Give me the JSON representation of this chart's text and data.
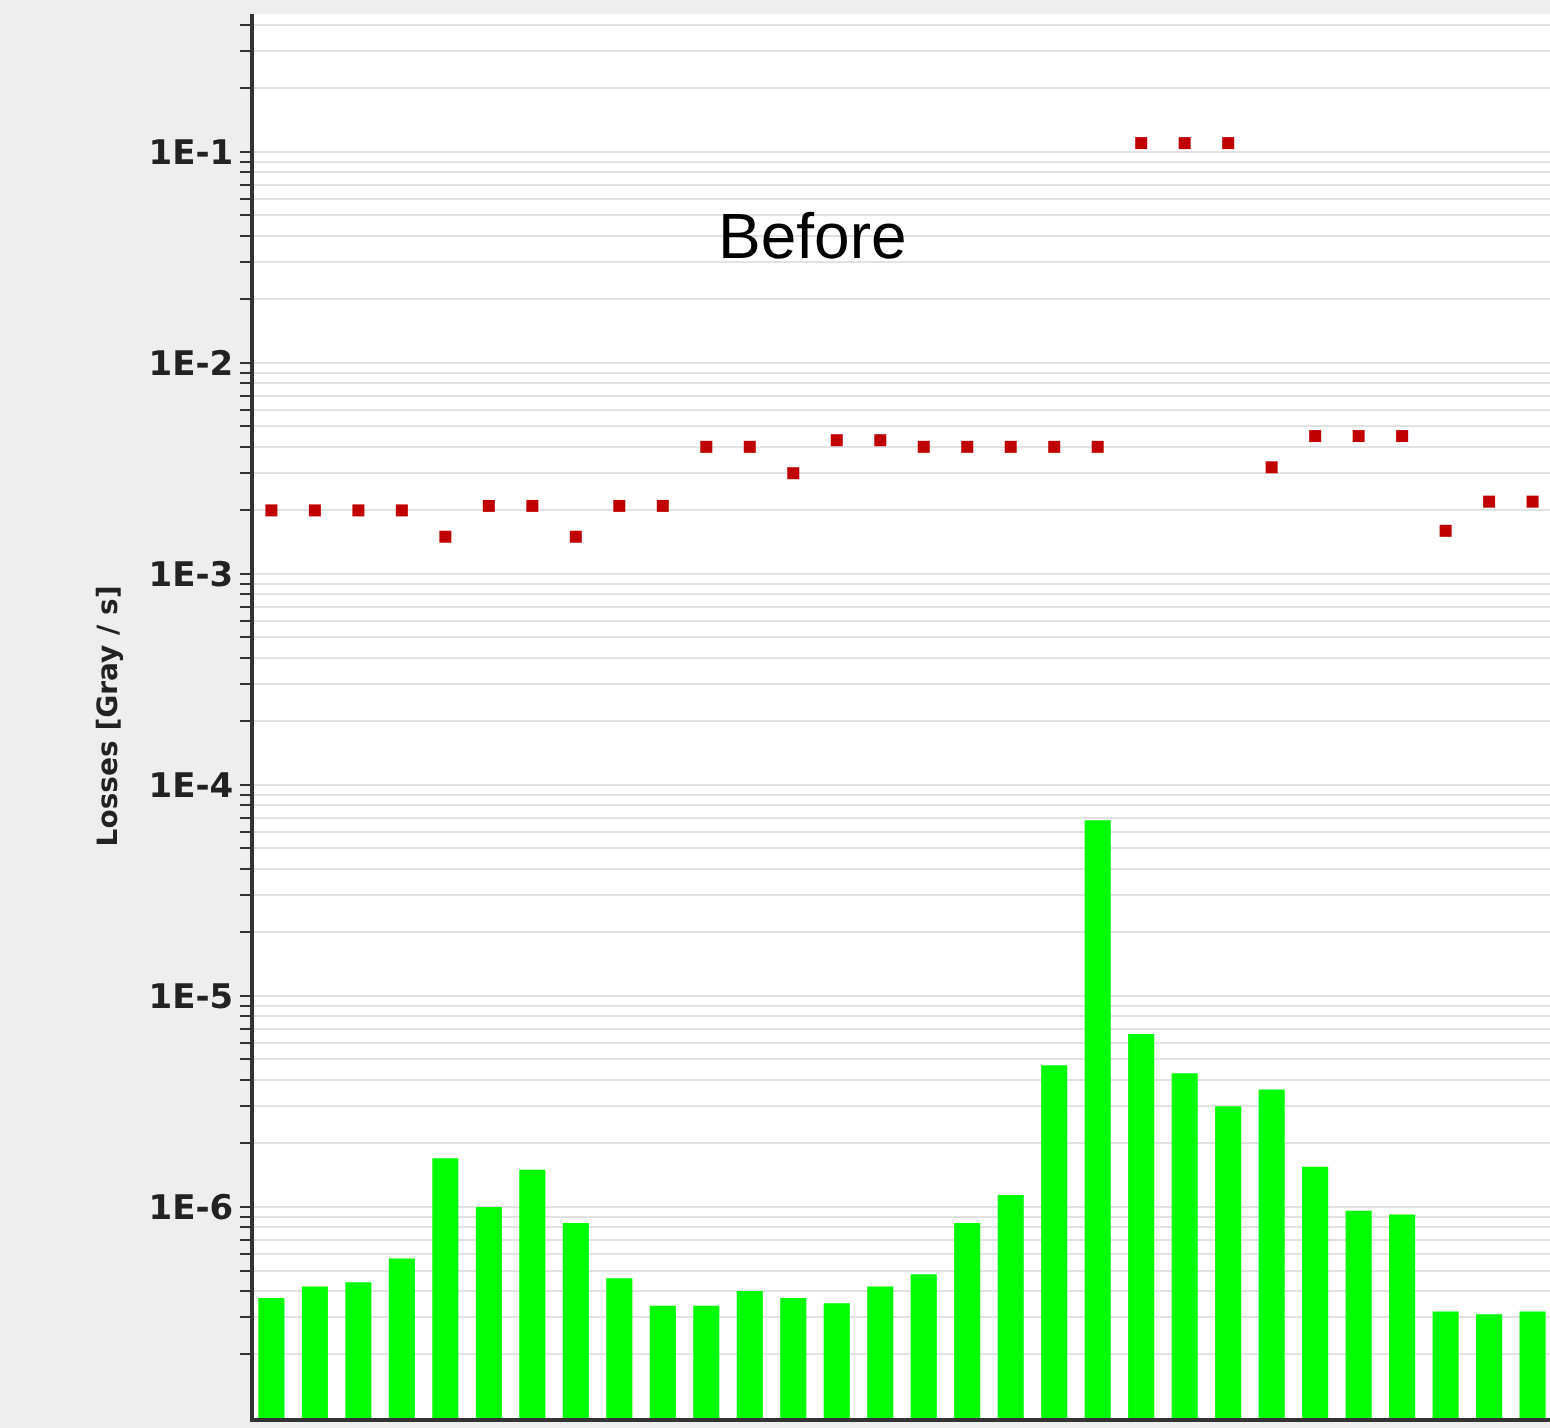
{
  "chart_data": {
    "type": "bar",
    "ylabel": "Losses [Gray / s]",
    "annotations": [
      "Before"
    ],
    "categories": [
      null,
      null,
      null,
      null,
      null,
      null,
      null,
      null,
      null,
      null,
      null,
      null,
      null,
      null,
      null,
      null,
      null,
      null,
      null,
      null,
      null,
      null,
      null,
      null,
      null,
      null,
      null,
      null,
      null,
      null
    ],
    "series": [
      {
        "color": "#00ff00",
        "values": [
          3.7e-07,
          4.2e-07,
          4.4e-07,
          5.7e-07,
          1.7e-06,
          1e-06,
          1.5e-06,
          8.4e-07,
          4.6e-07,
          3.4e-07,
          3.4e-07,
          4e-07,
          3.7e-07,
          3.5e-07,
          4.2e-07,
          4.8e-07,
          8.4e-07,
          1.14e-06,
          4.7e-06,
          6.8e-05,
          6.6e-06,
          4.3e-06,
          3e-06,
          3.6e-06,
          1.55e-06,
          9.6e-07,
          9.2e-07,
          3.2e-07,
          3.1e-07,
          3.2e-07
        ]
      },
      {
        "type": "scatter",
        "color": "#c00000",
        "marker": "square",
        "values": [
          0.002,
          0.002,
          0.002,
          0.002,
          0.0015,
          0.0021,
          0.0021,
          0.0015,
          0.0021,
          0.0021,
          0.004,
          0.004,
          0.003,
          0.0043,
          0.0043,
          0.004,
          0.004,
          0.004,
          0.004,
          0.004,
          0.11,
          0.11,
          0.11,
          0.0032,
          0.0045,
          0.0045,
          0.0045,
          0.0016,
          0.0022,
          0.0022
        ]
      }
    ],
    "log": true,
    "ylim": [
      1e-07,
      0.45
    ],
    "yticks": [
      {
        "value": 2e-07,
        "label": null
      },
      {
        "value": 3e-07,
        "label": null
      },
      {
        "value": 4e-07,
        "label": null
      },
      {
        "value": 5e-07,
        "label": null
      },
      {
        "value": 6e-07,
        "label": null
      },
      {
        "value": 7e-07,
        "label": null
      },
      {
        "value": 8e-07,
        "label": null
      },
      {
        "value": 9e-07,
        "label": null
      },
      {
        "value": 1e-06,
        "label": "1E-6"
      },
      {
        "value": 2e-06,
        "label": null
      },
      {
        "value": 3e-06,
        "label": null
      },
      {
        "value": 4e-06,
        "label": null
      },
      {
        "value": 5e-06,
        "label": null
      },
      {
        "value": 6e-06,
        "label": null
      },
      {
        "value": 7e-06,
        "label": null
      },
      {
        "value": 8e-06,
        "label": null
      },
      {
        "value": 9e-06,
        "label": null
      },
      {
        "value": 1e-05,
        "label": "1E-5"
      },
      {
        "value": 2e-05,
        "label": null
      },
      {
        "value": 3e-05,
        "label": null
      },
      {
        "value": 4e-05,
        "label": null
      },
      {
        "value": 5e-05,
        "label": null
      },
      {
        "value": 6e-05,
        "label": null
      },
      {
        "value": 7e-05,
        "label": null
      },
      {
        "value": 8e-05,
        "label": null
      },
      {
        "value": 9e-05,
        "label": null
      },
      {
        "value": 0.0001,
        "label": "1E-4"
      },
      {
        "value": 0.0002,
        "label": null
      },
      {
        "value": 0.0003,
        "label": null
      },
      {
        "value": 0.0004,
        "label": null
      },
      {
        "value": 0.0005,
        "label": null
      },
      {
        "value": 0.0006,
        "label": null
      },
      {
        "value": 0.0007,
        "label": null
      },
      {
        "value": 0.0008,
        "label": null
      },
      {
        "value": 0.0009,
        "label": null
      },
      {
        "value": 0.001,
        "label": "1E-3"
      },
      {
        "value": 0.002,
        "label": null
      },
      {
        "value": 0.003,
        "label": null
      },
      {
        "value": 0.004,
        "label": null
      },
      {
        "value": 0.005,
        "label": null
      },
      {
        "value": 0.006,
        "label": null
      },
      {
        "value": 0.007,
        "label": null
      },
      {
        "value": 0.008,
        "label": null
      },
      {
        "value": 0.009,
        "label": null
      },
      {
        "value": 0.01,
        "label": "1E-2"
      },
      {
        "value": 0.02,
        "label": null
      },
      {
        "value": 0.03,
        "label": null
      },
      {
        "value": 0.04,
        "label": null
      },
      {
        "value": 0.05,
        "label": null
      },
      {
        "value": 0.06,
        "label": null
      },
      {
        "value": 0.07,
        "label": null
      },
      {
        "value": 0.08,
        "label": null
      },
      {
        "value": 0.09,
        "label": null
      },
      {
        "value": 0.1,
        "label": "1E-1"
      },
      {
        "value": 0.2,
        "label": null
      },
      {
        "value": 0.3,
        "label": null
      },
      {
        "value": 0.4,
        "label": null
      }
    ],
    "grid": "y"
  }
}
